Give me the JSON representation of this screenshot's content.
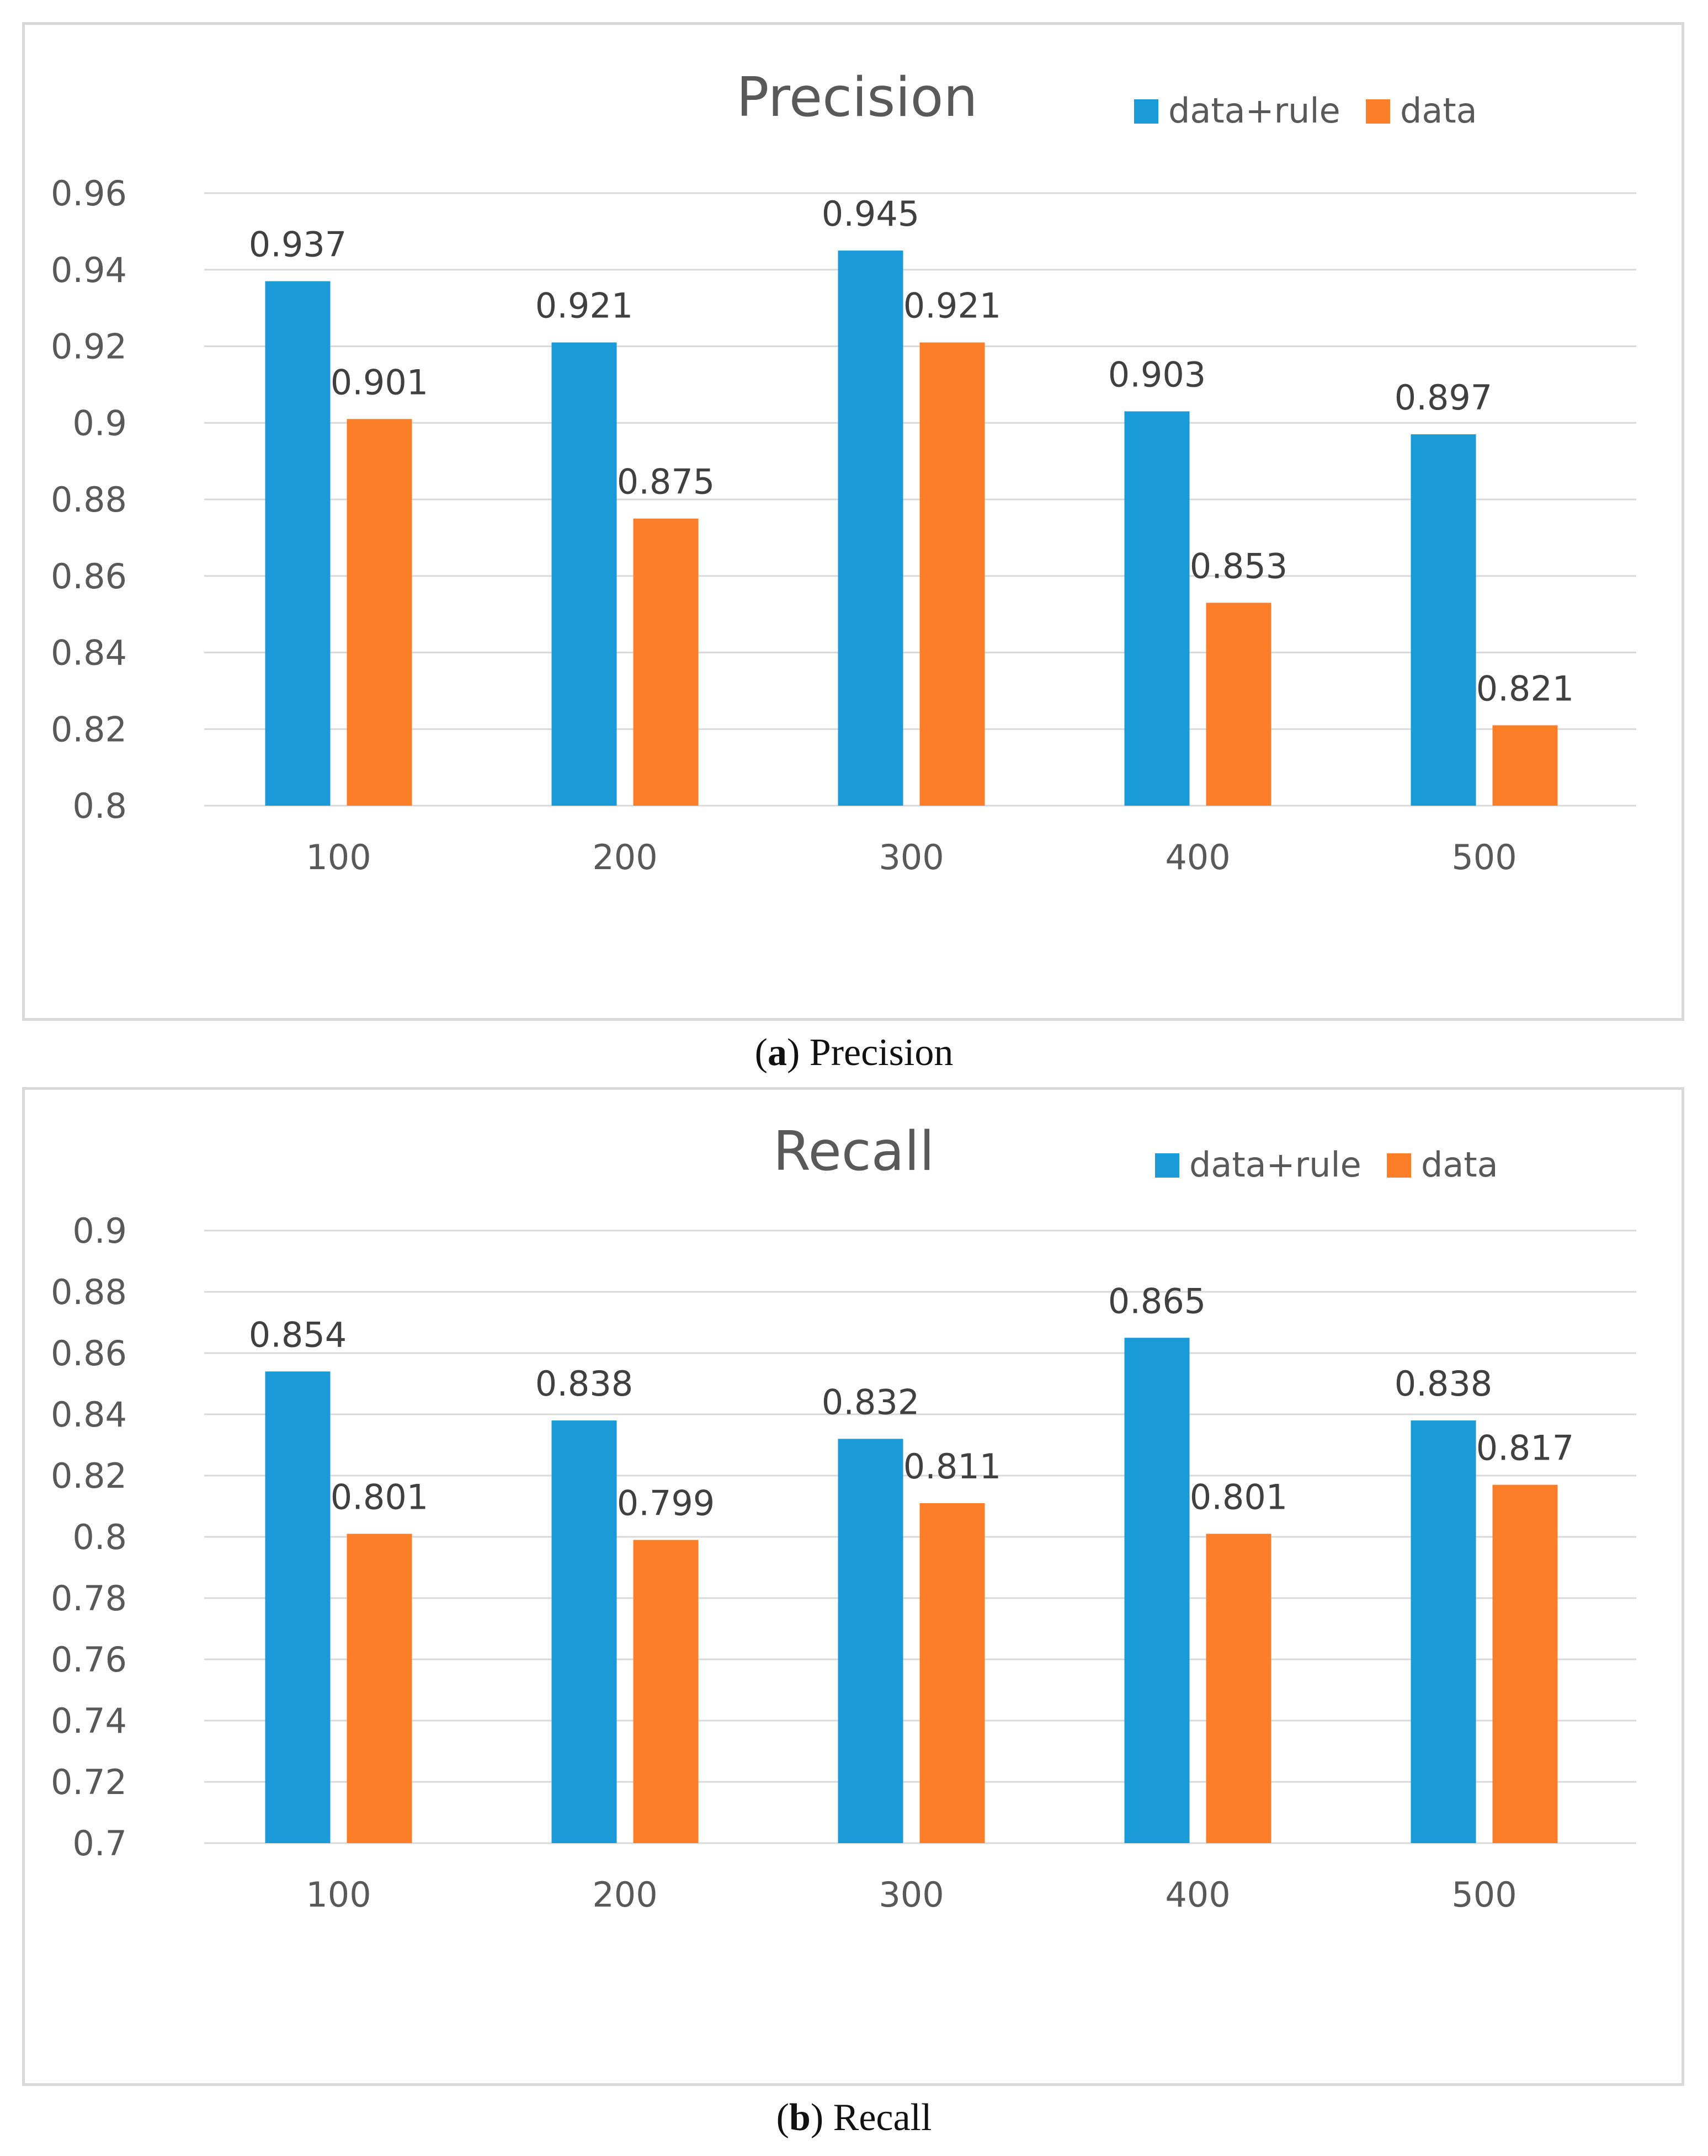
{
  "colors": {
    "data_rule": "#1a9ad6",
    "data": "#fd7e28"
  },
  "chart_data": [
    {
      "type": "bar",
      "title": "Precision",
      "categories": [
        "100",
        "200",
        "300",
        "400",
        "500"
      ],
      "series": [
        {
          "name": "data+rule",
          "values": [
            0.937,
            0.921,
            0.945,
            0.903,
            0.897
          ]
        },
        {
          "name": "data",
          "values": [
            0.901,
            0.875,
            0.921,
            0.853,
            0.821
          ]
        }
      ],
      "data_labels": [
        [
          "0.937",
          "0.921",
          "0.945",
          "0.903",
          "0.897"
        ],
        [
          "0.901",
          "0.875",
          "0.921",
          "0.853",
          "0.821"
        ]
      ],
      "y_ticks": [
        "0.8",
        "0.82",
        "0.84",
        "0.86",
        "0.88",
        "0.9",
        "0.92",
        "0.94",
        "0.96"
      ],
      "ylim": [
        0.8,
        0.96
      ],
      "ystep": 0.02,
      "xlabel": "",
      "ylabel": "",
      "grid": true,
      "legend": "top-right",
      "caption": {
        "letter": "a",
        "text": "Precision"
      }
    },
    {
      "type": "bar",
      "title": "Recall",
      "categories": [
        "100",
        "200",
        "300",
        "400",
        "500"
      ],
      "series": [
        {
          "name": "data+rule",
          "values": [
            0.854,
            0.838,
            0.832,
            0.865,
            0.838
          ]
        },
        {
          "name": "data",
          "values": [
            0.801,
            0.799,
            0.811,
            0.801,
            0.817
          ]
        }
      ],
      "data_labels": [
        [
          "0.854",
          "0.838",
          "0.832",
          "0.865",
          "0.838"
        ],
        [
          "0.801",
          "0.799",
          "0.811",
          "0.801",
          "0.817"
        ]
      ],
      "y_ticks": [
        "0.7",
        "0.72",
        "0.74",
        "0.76",
        "0.78",
        "0.8",
        "0.82",
        "0.84",
        "0.86",
        "0.88",
        "0.9"
      ],
      "ylim": [
        0.7,
        0.9
      ],
      "ystep": 0.02,
      "xlabel": "",
      "ylabel": "",
      "grid": true,
      "legend": "top-right",
      "caption": {
        "letter": "b",
        "text": "Recall"
      }
    }
  ]
}
